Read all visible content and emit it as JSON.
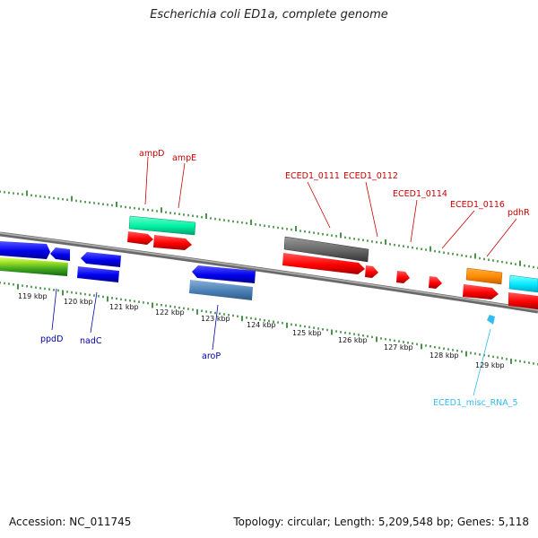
{
  "title": "Escherichia coli ED1a, complete genome",
  "footer": {
    "accession": "Accession: NC_011745",
    "stats": "Topology: circular; Length: 5,209,548 bp; Genes: 5,118"
  },
  "colors": {
    "label_red": "#cc0000",
    "label_blue": "#0000aa",
    "label_cyan": "#33bbee",
    "tick_green": "#1a7a1a",
    "backbone": "#888888"
  },
  "position_ticks": [
    "119 kbp",
    "120 kbp",
    "121 kbp",
    "122 kbp",
    "123 kbp",
    "124 kbp",
    "125 kbp",
    "126 kbp",
    "127 kbp",
    "128 kbp",
    "129 kbp"
  ],
  "labels": {
    "ampD": "ampD",
    "ampE": "ampE",
    "eced1_0111": "ECED1_0111",
    "eced1_0112": "ECED1_0112",
    "eced1_0114": "ECED1_0114",
    "eced1_0116": "ECED1_0116",
    "pdhR": "pdhR",
    "ppdD": "ppdD",
    "nadC": "nadC",
    "aroP": "aroP",
    "misc_rna_5": "ECED1_misc_RNA_5"
  }
}
